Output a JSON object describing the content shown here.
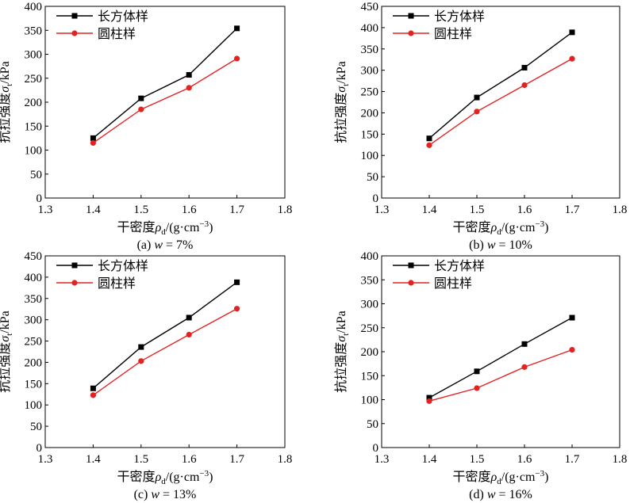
{
  "chart_data": [
    {
      "type": "line",
      "caption": "(a) w = 7%",
      "caption_prefix": "(a)",
      "caption_var": "w",
      "caption_rest": " = 7%",
      "xlabel": "干密度ρd/(g·cm−3)",
      "ylabel": "抗拉强度σt/kPa",
      "xlim": [
        1.3,
        1.8
      ],
      "ylim": [
        0,
        400
      ],
      "xticks": [
        1.3,
        1.4,
        1.5,
        1.6,
        1.7,
        1.8
      ],
      "yticks": [
        0,
        50,
        100,
        150,
        200,
        250,
        300,
        350,
        400
      ],
      "legend_position": "top-left",
      "grid": false,
      "x": [
        1.4,
        1.5,
        1.6,
        1.7
      ],
      "series": [
        {
          "name": "长方体样",
          "color": "#000000",
          "marker": "square",
          "values": [
            125,
            208,
            257,
            354
          ]
        },
        {
          "name": "圆柱样",
          "color": "#e32222",
          "marker": "circle",
          "values": [
            115,
            185,
            230,
            291
          ]
        }
      ]
    },
    {
      "type": "line",
      "caption": "(b) w = 10%",
      "caption_prefix": "(b)",
      "caption_var": "w",
      "caption_rest": " = 10%",
      "xlabel": "干密度ρd/(g·cm−3)",
      "ylabel": "抗拉强度σt/kPa",
      "xlim": [
        1.3,
        1.8
      ],
      "ylim": [
        0,
        450
      ],
      "xticks": [
        1.3,
        1.4,
        1.5,
        1.6,
        1.7,
        1.8
      ],
      "yticks": [
        0,
        50,
        100,
        150,
        200,
        250,
        300,
        350,
        400,
        450
      ],
      "legend_position": "top-left",
      "grid": false,
      "x": [
        1.4,
        1.5,
        1.6,
        1.7
      ],
      "series": [
        {
          "name": "长方体样",
          "color": "#000000",
          "marker": "square",
          "values": [
            140,
            236,
            306,
            389
          ]
        },
        {
          "name": "圆柱样",
          "color": "#e32222",
          "marker": "circle",
          "values": [
            124,
            203,
            265,
            327
          ]
        }
      ]
    },
    {
      "type": "line",
      "caption": "(c) w = 13%",
      "caption_prefix": "(c)",
      "caption_var": "w",
      "caption_rest": " = 13%",
      "xlabel": "干密度ρd/(g·cm−3)",
      "ylabel": "抗拉强度σt/kPa",
      "xlim": [
        1.3,
        1.8
      ],
      "ylim": [
        0,
        450
      ],
      "xticks": [
        1.3,
        1.4,
        1.5,
        1.6,
        1.7,
        1.8
      ],
      "yticks": [
        0,
        50,
        100,
        150,
        200,
        250,
        300,
        350,
        400,
        450
      ],
      "legend_position": "top-left",
      "grid": false,
      "x": [
        1.4,
        1.5,
        1.6,
        1.7
      ],
      "series": [
        {
          "name": "长方体样",
          "color": "#000000",
          "marker": "square",
          "values": [
            139,
            236,
            305,
            388
          ]
        },
        {
          "name": "圆柱样",
          "color": "#e32222",
          "marker": "circle",
          "values": [
            123,
            203,
            265,
            326
          ]
        }
      ]
    },
    {
      "type": "line",
      "caption": "(d) w = 16%",
      "caption_prefix": "(d)",
      "caption_var": "w",
      "caption_rest": " = 16%",
      "xlabel": "干密度ρd/(g·cm−3)",
      "ylabel": "抗拉强度σt/kPa",
      "xlim": [
        1.3,
        1.8
      ],
      "ylim": [
        0,
        400
      ],
      "xticks": [
        1.3,
        1.4,
        1.5,
        1.6,
        1.7,
        1.8
      ],
      "yticks": [
        0,
        50,
        100,
        150,
        200,
        250,
        300,
        350,
        400
      ],
      "legend_position": "top-left",
      "grid": false,
      "x": [
        1.4,
        1.5,
        1.6,
        1.7
      ],
      "series": [
        {
          "name": "长方体样",
          "color": "#000000",
          "marker": "square",
          "values": [
            104,
            159,
            216,
            271
          ]
        },
        {
          "name": "圆柱样",
          "color": "#e32222",
          "marker": "circle",
          "values": [
            97,
            124,
            168,
            204
          ]
        }
      ]
    }
  ],
  "axis_text": {
    "xlabel_main": "干密度",
    "xlabel_rho": "ρ",
    "xlabel_sub": "d",
    "xlabel_unit_a": "/(g·cm",
    "xlabel_sup": "−3",
    "xlabel_unit_b": ")",
    "ylabel_main": "抗拉强度",
    "ylabel_sigma": "σ",
    "ylabel_sub": "t",
    "ylabel_unit": "/kPa"
  }
}
